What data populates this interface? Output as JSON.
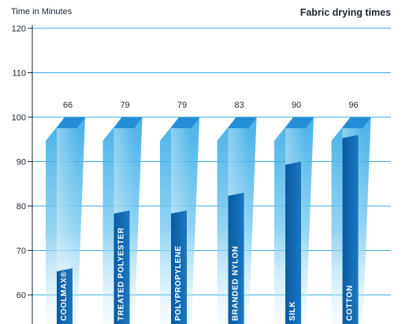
{
  "chart_data": {
    "type": "bar",
    "title": "Fabric drying times",
    "ylabel": "Time in Minutes",
    "xlabel": "",
    "categories": [
      "COOLMAX®",
      "TREATED POLYESTER",
      "POLYPROPYLENE",
      "BRANDED NYLON",
      "SILK",
      "COTTON"
    ],
    "values": [
      66,
      79,
      79,
      83,
      90,
      96
    ],
    "data_labels": [
      "66",
      "79",
      "79",
      "83",
      "90",
      "96"
    ],
    "yticks": [
      "60",
      "70",
      "80",
      "90",
      "100",
      "110",
      "120"
    ],
    "ylim": [
      55,
      120
    ],
    "grid": true,
    "colors": {
      "grid": "#35a8e0",
      "axis": "#1a2533",
      "bar_dark": "#0e5fa8",
      "bar_mid": "#1f8bd4",
      "bar_light": "#8fd3f4",
      "text": "#1a2533"
    }
  }
}
